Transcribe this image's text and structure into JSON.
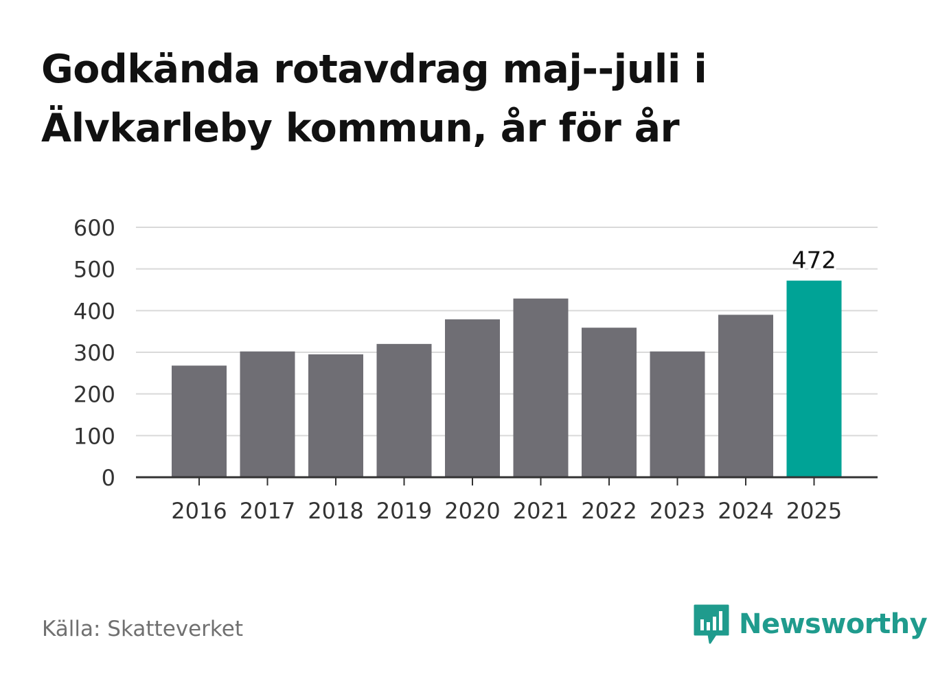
{
  "title_lines": [
    "Godkända rotavdrag maj--juli i",
    "Älvkarleby kommun, år för år"
  ],
  "source": "Källa: Skatteverket",
  "brand": {
    "name": "Newsworthy",
    "color": "#1f9b8d",
    "logo_icon": "speech-bubble-bar-chart-icon"
  },
  "colors": {
    "bar": "#6f6e74",
    "highlight": "#00a396",
    "grid": "#d9d9d9",
    "axis": "#333333",
    "tick_text": "#333333"
  },
  "chart_data": {
    "type": "bar",
    "title": "Godkända rotavdrag maj--juli i Älvkarleby kommun, år för år",
    "categories": [
      "2016",
      "2017",
      "2018",
      "2019",
      "2020",
      "2021",
      "2022",
      "2023",
      "2024",
      "2025"
    ],
    "values": [
      268,
      302,
      295,
      320,
      379,
      429,
      359,
      302,
      390,
      472
    ],
    "ylim": [
      0,
      600
    ],
    "yticks": [
      0,
      100,
      200,
      300,
      400,
      500,
      600
    ],
    "grid": true,
    "highlight_index": 9,
    "data_labels": [
      {
        "index": 9,
        "text": "472"
      }
    ]
  }
}
